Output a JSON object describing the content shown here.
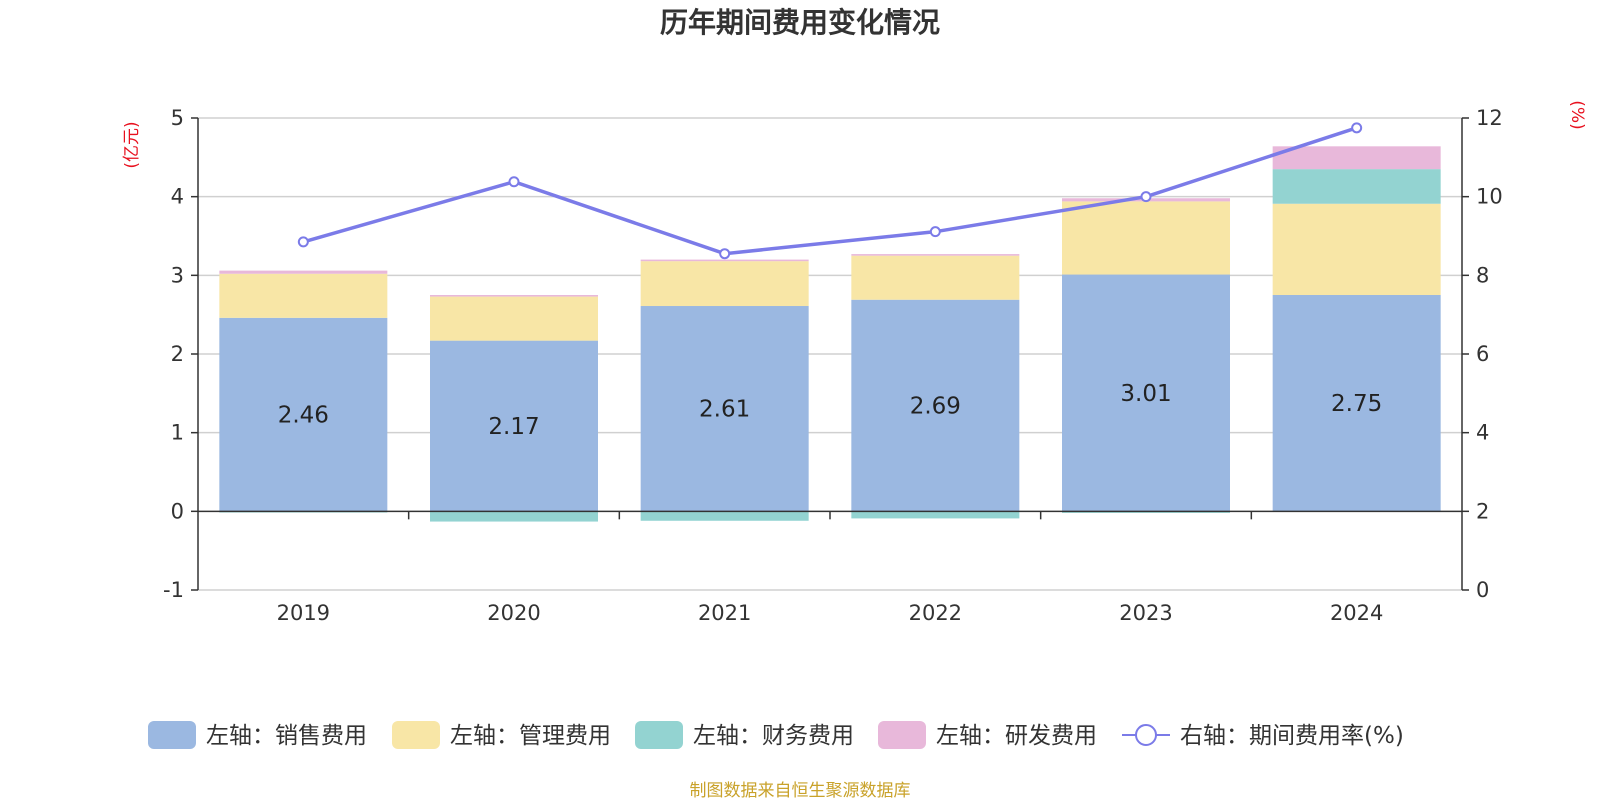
{
  "chart_data": {
    "type": "bar",
    "stacked": true,
    "title": "历年期间费用变化情况",
    "categories": [
      "2019",
      "2020",
      "2021",
      "2022",
      "2023",
      "2024"
    ],
    "y_left": {
      "unit": "(亿元)",
      "ylim": [
        -1,
        5
      ],
      "ticks": [
        "5",
        "4",
        "3",
        "2",
        "1",
        "0",
        "-1"
      ],
      "tick_values": [
        5,
        4,
        3,
        2,
        1,
        0,
        -1
      ]
    },
    "y_right": {
      "unit": "(%)",
      "ylim": [
        0,
        12
      ],
      "ticks": [
        "12",
        "10",
        "8",
        "6",
        "4",
        "2",
        "0"
      ],
      "tick_values": [
        12,
        10,
        8,
        6,
        4,
        2,
        0
      ]
    },
    "series": [
      {
        "name": "左轴：销售费用",
        "axis": "left",
        "color": "#9bb8e1",
        "values": [
          2.46,
          2.17,
          2.61,
          2.69,
          3.01,
          2.75
        ],
        "labels": [
          "2.46",
          "2.17",
          "2.61",
          "2.69",
          "3.01",
          "2.75"
        ]
      },
      {
        "name": "左轴：管理费用",
        "axis": "left",
        "color": "#f8e6a6",
        "values": [
          0.56,
          0.56,
          0.57,
          0.56,
          0.93,
          1.16
        ]
      },
      {
        "name": "左轴：财务费用",
        "axis": "left",
        "color": "#93d3d1",
        "values": [
          -0.01,
          -0.13,
          -0.12,
          -0.09,
          -0.02,
          0.44
        ]
      },
      {
        "name": "左轴：研发费用",
        "axis": "left",
        "color": "#e8b8da",
        "values": [
          0.04,
          0.02,
          0.02,
          0.02,
          0.04,
          0.29
        ]
      },
      {
        "name": "右轴：期间费用率(%)",
        "axis": "right",
        "type": "line",
        "color": "#7b7be8",
        "values": [
          8.85,
          10.38,
          8.55,
          9.11,
          10.0,
          11.75
        ]
      }
    ],
    "grid": true,
    "legend_position": "bottom"
  },
  "source_text": "制图数据来自恒生聚源数据库"
}
